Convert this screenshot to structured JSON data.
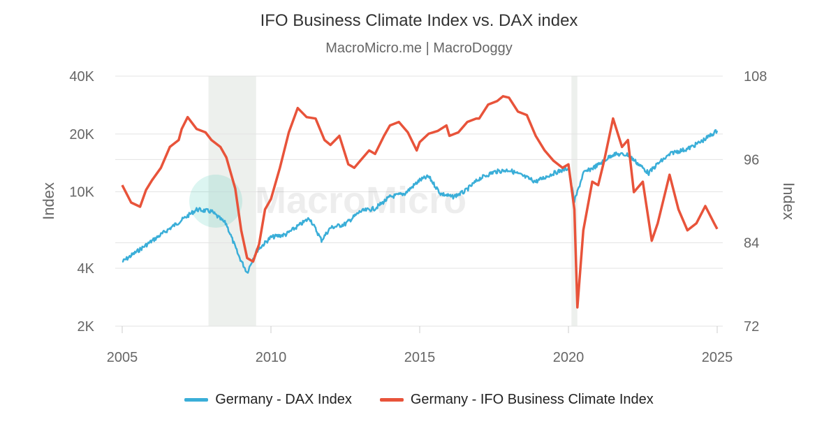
{
  "chart_data": {
    "type": "line",
    "title": "IFO Business Climate Index vs. DAX index",
    "subtitle": "MacroMicro.me | MacroDoggy",
    "watermark": "MacroMicro",
    "x_ticks": [
      "2005",
      "2010",
      "2015",
      "2020",
      "2025"
    ],
    "xlim": [
      2005,
      2025
    ],
    "left_axis": {
      "label": "Index",
      "scale": "log",
      "range": [
        2000,
        40000
      ],
      "ticks": [
        2000,
        4000,
        10000,
        20000,
        40000
      ],
      "tick_labels": [
        "2K",
        "4K",
        "10K",
        "20K",
        "40K"
      ]
    },
    "right_axis": {
      "label": "Index",
      "scale": "linear",
      "range": [
        72,
        108
      ],
      "ticks": [
        72,
        84,
        96,
        108
      ],
      "tick_labels": [
        "72",
        "84",
        "96",
        "108"
      ]
    },
    "grid": true,
    "legend_position": "bottom",
    "recession_shading": [
      [
        2007.9,
        2009.5
      ],
      [
        2020.1,
        2020.3
      ]
    ],
    "series": [
      {
        "name": "Germany - DAX Index",
        "axis": "left",
        "color": "#3aaed8",
        "x": [
          2005.0,
          2006.0,
          2007.0,
          2007.5,
          2008.0,
          2008.5,
          2008.9,
          2009.2,
          2009.5,
          2010.0,
          2010.5,
          2011.3,
          2011.7,
          2012.0,
          2012.5,
          2013.0,
          2013.5,
          2014.0,
          2014.5,
          2015.0,
          2015.3,
          2015.7,
          2016.1,
          2016.5,
          2017.0,
          2017.5,
          2018.0,
          2018.9,
          2019.5,
          2020.0,
          2020.2,
          2020.5,
          2021.0,
          2021.5,
          2022.0,
          2022.7,
          2023.0,
          2023.5,
          2024.0,
          2024.5,
          2025.0
        ],
        "values": [
          4320,
          5550,
          7130,
          8090,
          7900,
          6800,
          4700,
          3800,
          4900,
          5800,
          6000,
          7300,
          5600,
          6500,
          6800,
          7900,
          8200,
          9400,
          9800,
          11500,
          12000,
          9800,
          9400,
          10000,
          11700,
          12700,
          13000,
          11300,
          12500,
          13300,
          8900,
          12500,
          13800,
          15700,
          15600,
          12500,
          14000,
          16000,
          16700,
          18400,
          20800
        ]
      },
      {
        "name": "Germany - IFO Business Climate Index",
        "axis": "right",
        "color": "#e8533a",
        "x": [
          2005.0,
          2005.3,
          2005.6,
          2005.8,
          2006.0,
          2006.3,
          2006.6,
          2006.9,
          2007.0,
          2007.2,
          2007.5,
          2007.8,
          2008.0,
          2008.3,
          2008.5,
          2008.8,
          2009.0,
          2009.2,
          2009.4,
          2009.6,
          2009.8,
          2010.0,
          2010.3,
          2010.6,
          2010.9,
          2011.2,
          2011.5,
          2011.8,
          2012.0,
          2012.3,
          2012.6,
          2012.8,
          2013.0,
          2013.3,
          2013.5,
          2013.8,
          2014.0,
          2014.3,
          2014.6,
          2014.9,
          2015.0,
          2015.3,
          2015.6,
          2015.9,
          2016.0,
          2016.3,
          2016.6,
          2016.9,
          2017.0,
          2017.3,
          2017.6,
          2017.8,
          2018.0,
          2018.3,
          2018.6,
          2018.9,
          2019.2,
          2019.5,
          2019.8,
          2020.0,
          2020.2,
          2020.3,
          2020.5,
          2020.8,
          2021.0,
          2021.2,
          2021.5,
          2021.8,
          2022.0,
          2022.2,
          2022.5,
          2022.8,
          2023.0,
          2023.2,
          2023.4,
          2023.7,
          2024.0,
          2024.3,
          2024.6,
          2024.9,
          2025.0
        ],
        "values": [
          92.3,
          89.8,
          89.2,
          91.6,
          93.0,
          94.8,
          97.8,
          98.8,
          100.4,
          102.1,
          100.4,
          99.9,
          98.8,
          97.8,
          96.3,
          91.8,
          85.8,
          81.8,
          81.3,
          83.8,
          88.8,
          90.3,
          94.8,
          99.9,
          103.4,
          102.1,
          101.9,
          98.8,
          98.1,
          99.4,
          95.3,
          94.8,
          95.8,
          97.3,
          96.8,
          99.4,
          100.9,
          101.4,
          99.9,
          97.3,
          98.5,
          99.7,
          100.1,
          100.9,
          99.4,
          99.9,
          101.4,
          101.9,
          101.9,
          103.9,
          104.4,
          105.1,
          104.9,
          102.9,
          102.4,
          99.4,
          97.3,
          95.8,
          94.8,
          95.3,
          88.8,
          74.7,
          85.8,
          92.8,
          92.3,
          95.8,
          101.9,
          97.8,
          98.8,
          91.3,
          92.8,
          84.3,
          86.8,
          90.3,
          93.8,
          88.8,
          85.8,
          86.8,
          89.3,
          86.8,
          86.0
        ]
      }
    ]
  }
}
